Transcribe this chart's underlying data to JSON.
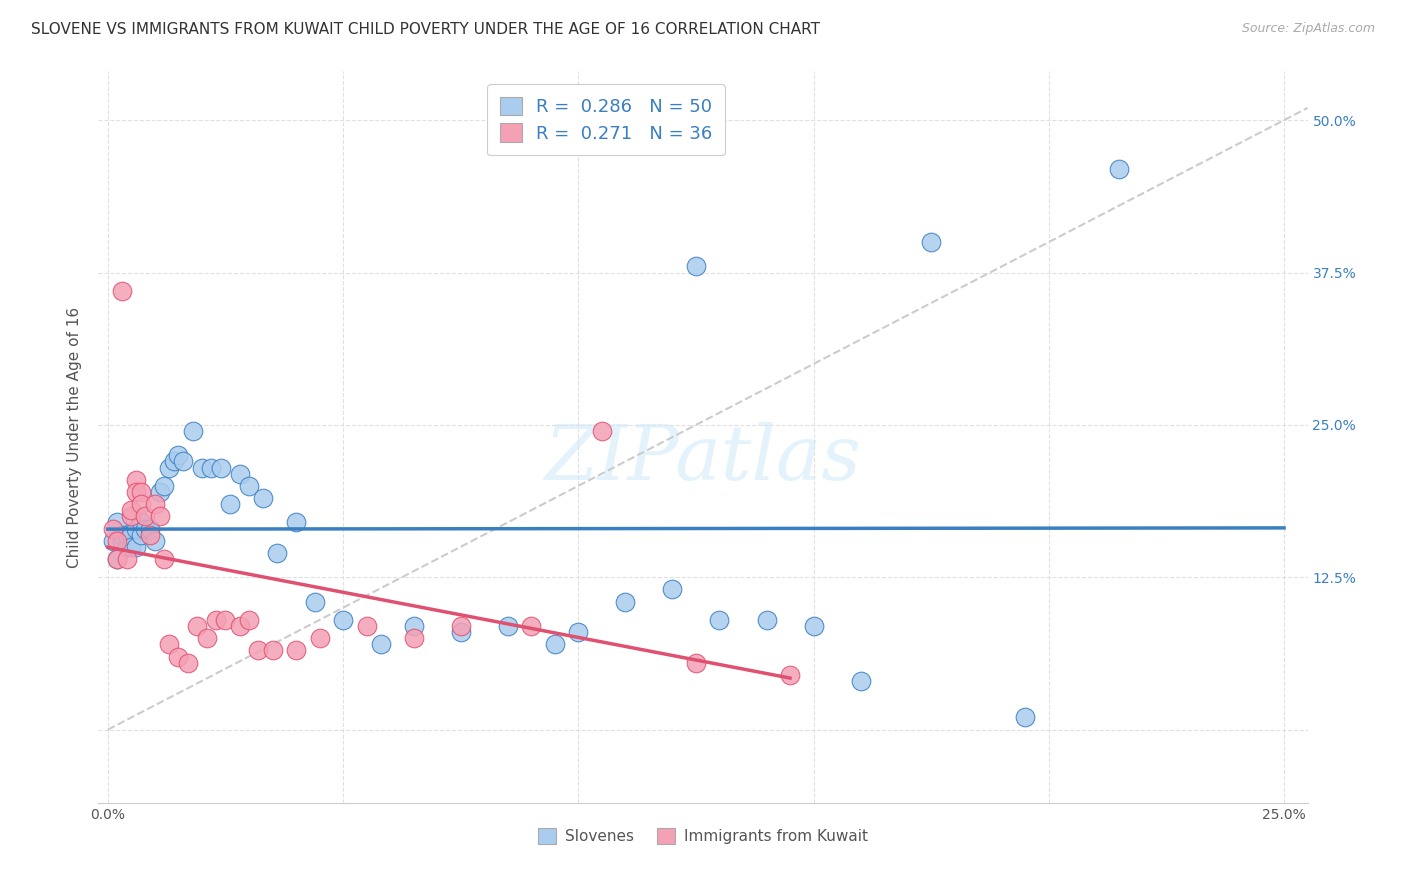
{
  "title": "SLOVENE VS IMMIGRANTS FROM KUWAIT CHILD POVERTY UNDER THE AGE OF 16 CORRELATION CHART",
  "source": "Source: ZipAtlas.com",
  "ylabel": "Child Poverty Under the Age of 16",
  "xlim": [
    -0.002,
    0.255
  ],
  "ylim": [
    -0.06,
    0.54
  ],
  "xticks": [
    0.0,
    0.05,
    0.1,
    0.15,
    0.2,
    0.25
  ],
  "yticks": [
    0.0,
    0.125,
    0.25,
    0.375,
    0.5
  ],
  "xtick_labels": [
    "0.0%",
    "",
    "",
    "",
    "",
    "25.0%"
  ],
  "ytick_labels_right": [
    "",
    "12.5%",
    "25.0%",
    "37.5%",
    "50.0%"
  ],
  "blue_R": 0.286,
  "blue_N": 50,
  "pink_R": 0.271,
  "pink_N": 36,
  "blue_scatter_x": [
    0.001,
    0.002,
    0.002,
    0.003,
    0.003,
    0.004,
    0.004,
    0.005,
    0.005,
    0.006,
    0.006,
    0.007,
    0.007,
    0.008,
    0.009,
    0.01,
    0.011,
    0.012,
    0.013,
    0.014,
    0.015,
    0.016,
    0.018,
    0.02,
    0.022,
    0.024,
    0.026,
    0.028,
    0.03,
    0.033,
    0.036,
    0.04,
    0.044,
    0.05,
    0.058,
    0.065,
    0.075,
    0.085,
    0.095,
    0.1,
    0.11,
    0.12,
    0.125,
    0.13,
    0.14,
    0.15,
    0.16,
    0.175,
    0.195,
    0.215
  ],
  "blue_scatter_y": [
    0.155,
    0.14,
    0.17,
    0.155,
    0.16,
    0.15,
    0.16,
    0.16,
    0.15,
    0.165,
    0.15,
    0.17,
    0.16,
    0.165,
    0.165,
    0.155,
    0.195,
    0.2,
    0.215,
    0.22,
    0.225,
    0.22,
    0.245,
    0.215,
    0.215,
    0.215,
    0.185,
    0.21,
    0.2,
    0.19,
    0.145,
    0.17,
    0.105,
    0.09,
    0.07,
    0.085,
    0.08,
    0.085,
    0.07,
    0.08,
    0.105,
    0.115,
    0.38,
    0.09,
    0.09,
    0.085,
    0.04,
    0.4,
    0.01,
    0.46
  ],
  "pink_scatter_x": [
    0.001,
    0.002,
    0.002,
    0.003,
    0.004,
    0.005,
    0.005,
    0.006,
    0.006,
    0.007,
    0.007,
    0.008,
    0.009,
    0.01,
    0.011,
    0.012,
    0.013,
    0.015,
    0.017,
    0.019,
    0.021,
    0.023,
    0.025,
    0.028,
    0.03,
    0.032,
    0.035,
    0.04,
    0.045,
    0.055,
    0.065,
    0.075,
    0.09,
    0.105,
    0.125,
    0.145
  ],
  "pink_scatter_y": [
    0.165,
    0.155,
    0.14,
    0.36,
    0.14,
    0.175,
    0.18,
    0.205,
    0.195,
    0.195,
    0.185,
    0.175,
    0.16,
    0.185,
    0.175,
    0.14,
    0.07,
    0.06,
    0.055,
    0.085,
    0.075,
    0.09,
    0.09,
    0.085,
    0.09,
    0.065,
    0.065,
    0.065,
    0.075,
    0.085,
    0.075,
    0.085,
    0.085,
    0.245,
    0.055,
    0.045
  ],
  "blue_line_color": "#3a7fc1",
  "pink_line_color": "#e05070",
  "blue_scatter_color": "#aaccee",
  "pink_scatter_color": "#f4a0b5",
  "ref_line_color": "#cccccc",
  "legend_color": "#3a7fc1",
  "background_color": "#ffffff",
  "grid_color": "#dddddd",
  "watermark": "ZIPatlas",
  "title_fontsize": 11,
  "axis_label_fontsize": 11,
  "tick_fontsize": 10,
  "legend_fontsize": 13,
  "source_fontsize": 9
}
